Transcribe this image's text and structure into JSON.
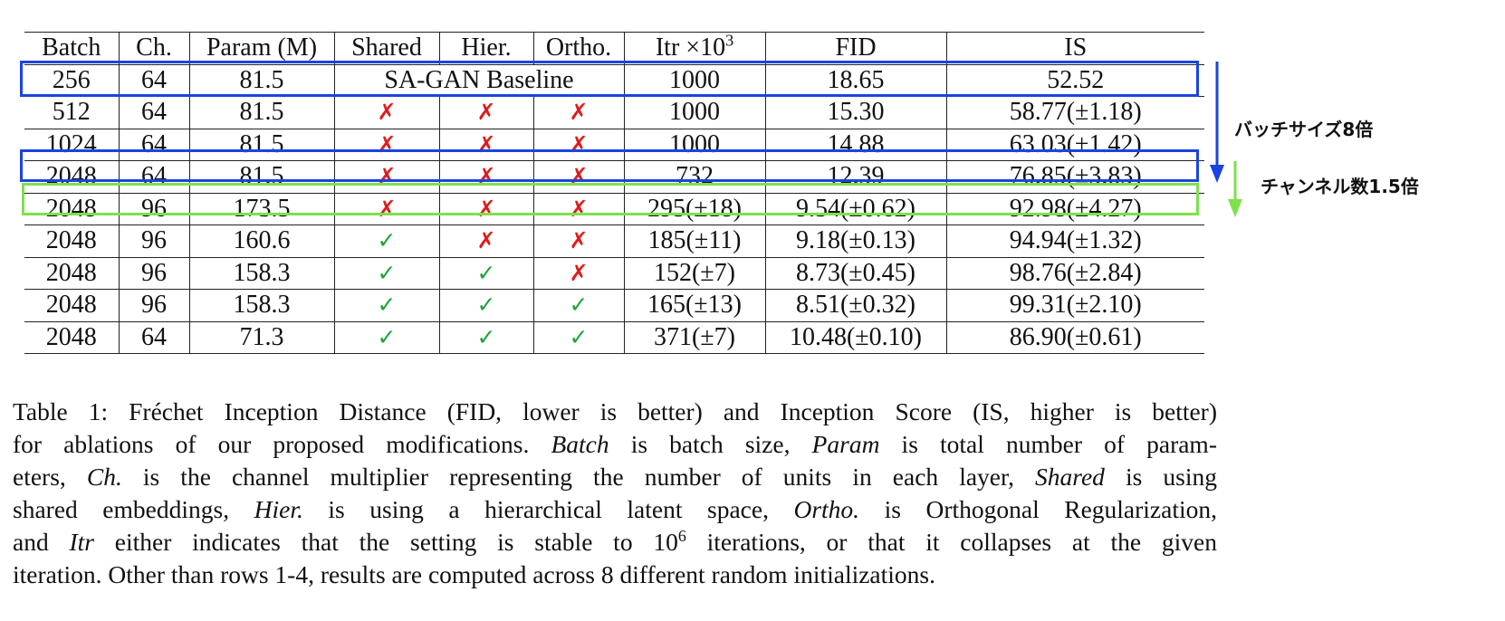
{
  "table": {
    "headers": [
      "Batch",
      "Ch.",
      "Param (M)",
      "Shared",
      "Hier.",
      "Ortho.",
      "Itr ×10",
      "FID",
      "IS"
    ],
    "itr_exponent": "3",
    "baseline_label": "SA-GAN Baseline",
    "rows": [
      {
        "batch": "256",
        "ch": "64",
        "param": "81.5",
        "shared": "",
        "hier": "",
        "ortho": "",
        "itr": "1000",
        "fid": "18.65",
        "is": "52.52",
        "baseline": true
      },
      {
        "batch": "512",
        "ch": "64",
        "param": "81.5",
        "shared": "✗",
        "hier": "✗",
        "ortho": "✗",
        "itr": "1000",
        "fid": "15.30",
        "is": "58.77(±1.18)"
      },
      {
        "batch": "1024",
        "ch": "64",
        "param": "81.5",
        "shared": "✗",
        "hier": "✗",
        "ortho": "✗",
        "itr": "1000",
        "fid": "14.88",
        "is": "63.03(±1.42)"
      },
      {
        "batch": "2048",
        "ch": "64",
        "param": "81.5",
        "shared": "✗",
        "hier": "✗",
        "ortho": "✗",
        "itr": "732",
        "fid": "12.39",
        "is": "76.85(±3.83)"
      },
      {
        "batch": "2048",
        "ch": "96",
        "param": "173.5",
        "shared": "✗",
        "hier": "✗",
        "ortho": "✗",
        "itr": "295(±18)",
        "fid": "9.54(±0.62)",
        "is": "92.98(±4.27)"
      },
      {
        "batch": "2048",
        "ch": "96",
        "param": "160.6",
        "shared": "✓",
        "hier": "✗",
        "ortho": "✗",
        "itr": "185(±11)",
        "fid": "9.18(±0.13)",
        "is": "94.94(±1.32)"
      },
      {
        "batch": "2048",
        "ch": "96",
        "param": "158.3",
        "shared": "✓",
        "hier": "✓",
        "ortho": "✗",
        "itr": "152(±7)",
        "fid": "8.73(±0.45)",
        "is": "98.76(±2.84)"
      },
      {
        "batch": "2048",
        "ch": "96",
        "param": "158.3",
        "shared": "✓",
        "hier": "✓",
        "ortho": "✓",
        "itr": "165(±13)",
        "fid": "8.51(±0.32)",
        "is": "99.31(±2.10)"
      },
      {
        "batch": "2048",
        "ch": "64",
        "param": "71.3",
        "shared": "✓",
        "hier": "✓",
        "ortho": "✓",
        "itr": "371(±7)",
        "fid": "10.48(±0.10)",
        "is": "86.90(±0.61)"
      }
    ]
  },
  "annotations": {
    "batch_label": "バッチサイズ8倍",
    "channel_label": "チャンネル数1.5倍"
  },
  "colors": {
    "cross": "#e11b1b",
    "check": "#1fa33c",
    "blue_highlight": "#1a44e0",
    "green_highlight": "#7de14c"
  },
  "caption": {
    "l1_a": "Table 1:  Fréchet Inception Distance (FID, lower is better) and Inception Score (IS, higher is better)",
    "l2_a": "for ablations of our proposed modifications. ",
    "l2_b": "Batch",
    "l2_c": " is batch size, ",
    "l2_d": "Param",
    "l2_e": " is total number of param-",
    "l3_a": "eters, ",
    "l3_b": "Ch.",
    "l3_c": " is the channel multiplier representing the number of units in each layer, ",
    "l3_d": "Shared",
    "l3_e": " is using",
    "l4_a": "shared embeddings, ",
    "l4_b": "Hier.",
    "l4_c": " is using a hierarchical latent space, ",
    "l4_d": "Ortho.",
    "l4_e": " is Orthogonal Regularization,",
    "l5_a": "and ",
    "l5_b": "Itr",
    "l5_c": " either indicates that the setting is stable to 10",
    "l5_sup": "6",
    "l5_d": " iterations, or that it collapses at the given",
    "l6_a": "iteration. Other than rows 1-4, results are computed across 8 different random initializations."
  }
}
